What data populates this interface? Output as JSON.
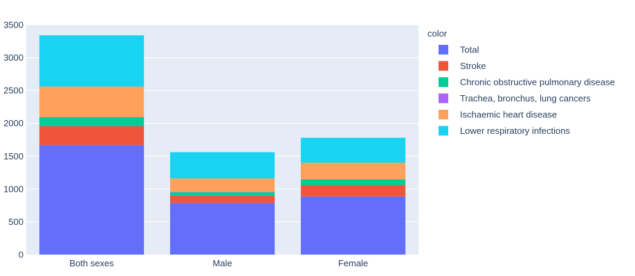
{
  "chart_data": {
    "type": "bar",
    "barmode": "stack",
    "categories": [
      "Both sexes",
      "Male",
      "Female"
    ],
    "series": [
      {
        "name": "Total",
        "color": "#636efa",
        "values": [
          1670,
          785,
          885
        ]
      },
      {
        "name": "Stroke",
        "color": "#ef553b",
        "values": [
          285,
          110,
          175
        ]
      },
      {
        "name": "Chronic obstructive pulmonary disease",
        "color": "#00cc96",
        "values": [
          140,
          55,
          85
        ]
      },
      {
        "name": "Trachea, bronchus, lung cancers",
        "color": "#ab63fa",
        "values": [
          0,
          5,
          0
        ]
      },
      {
        "name": "Ischaemic heart disease",
        "color": "#ffa15a",
        "values": [
          465,
          205,
          255
        ]
      },
      {
        "name": "Lower respiratory infections",
        "color": "#19d3f3",
        "values": [
          780,
          400,
          380
        ]
      }
    ],
    "title": "",
    "xlabel": "",
    "ylabel": "",
    "ylim": [
      0,
      3500
    ],
    "yticks": [
      0,
      500,
      1000,
      1500,
      2000,
      2500,
      3000,
      3500
    ],
    "legend_title": "color",
    "legend_position": "right",
    "plot_background": "#e5ecf6",
    "grid_color": "#ffffff"
  }
}
